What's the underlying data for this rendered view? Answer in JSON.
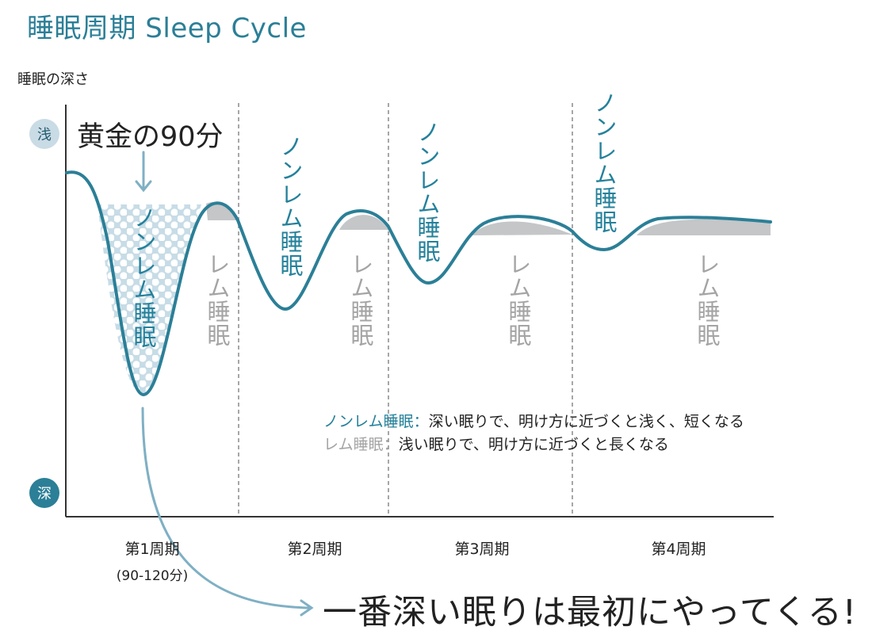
{
  "title": "睡眠周期 Sleep Cycle",
  "y_axis_label": "睡眠の深さ",
  "y_markers": {
    "shallow": "浅",
    "deep": "深"
  },
  "golden_label": "黄金の90分",
  "stages": {
    "nrem": "ノンレム睡眠",
    "rem": "レム睡眠"
  },
  "legend": {
    "nrem_key": "ノンレム睡眠：",
    "nrem_text": "深い眠りで、明け方に近づくと浅く、短くなる",
    "rem_key": "レム睡眠：",
    "rem_text": "浅い眠りで、明け方に近づくと長くなる"
  },
  "cycles": [
    {
      "label": "第1周期",
      "sub": "(90-120分)"
    },
    {
      "label": "第2周期"
    },
    {
      "label": "第3周期"
    },
    {
      "label": "第4周期"
    }
  ],
  "conclusion": "一番深い眠りは最初にやってくる!",
  "colors": {
    "accent": "#2b7f97",
    "nrem_text": "#24819b",
    "rem_text": "#a4a4a4",
    "rem_fill": "#c4c6c8",
    "dots_bg": "#c7dce6",
    "arrow": "#7fb0c4",
    "divider": "#8a8a8a"
  }
}
